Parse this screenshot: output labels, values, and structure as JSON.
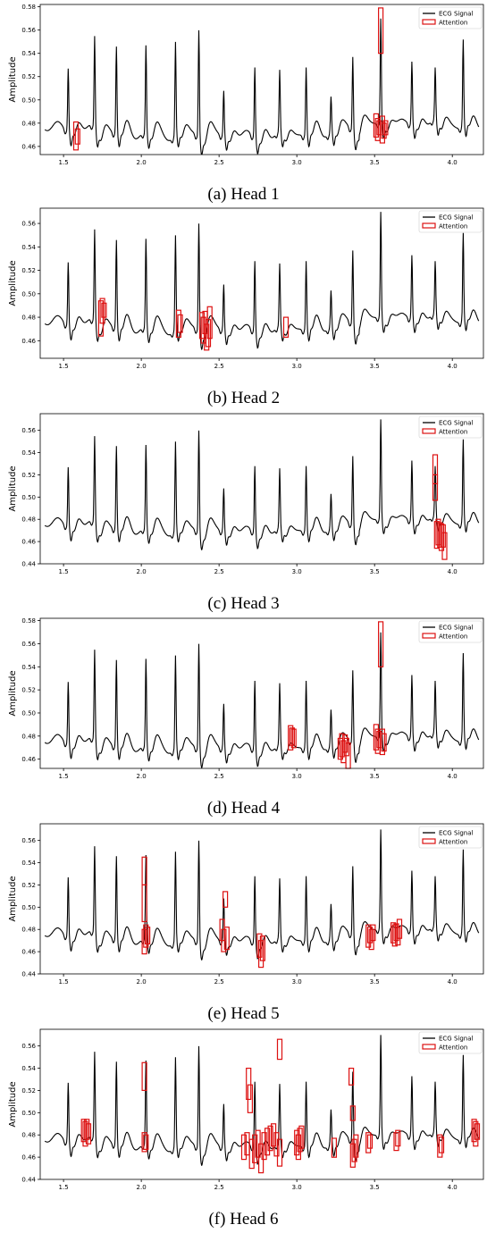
{
  "colors": {
    "signal": "#000000",
    "attention": "#dd1111",
    "axes": "#000000",
    "background": "#ffffff"
  },
  "chart_data": [
    {
      "type": "line",
      "caption": "(a) Head 1",
      "ylabel": "Amplitude",
      "xlim": [
        1.35,
        4.2
      ],
      "ylim": [
        0.453,
        0.582
      ],
      "xticks": [
        1.5,
        2.0,
        2.5,
        3.0,
        3.5,
        4.0
      ],
      "xtick_labels": [
        "1.5",
        "2.0",
        "2.5",
        "3.0",
        "3.5",
        "4.0"
      ],
      "yticks": [
        0.46,
        0.48,
        0.5,
        0.52,
        0.54,
        0.56,
        0.58
      ],
      "ytick_labels": [
        "0.46",
        "0.48",
        "0.50",
        "0.52",
        "0.54",
        "0.56",
        "0.58"
      ],
      "legend": {
        "position": "upper-right",
        "entries": [
          "ECG Signal",
          "Attention"
        ]
      },
      "series": [
        {
          "name": "ECG Signal",
          "style": "line"
        },
        {
          "name": "Attention",
          "style": "boxes",
          "boxes": [
            {
              "x": 1.58,
              "y0": 0.457,
              "y1": 0.481
            },
            {
              "x": 1.59,
              "y0": 0.462,
              "y1": 0.475
            },
            {
              "x": 3.51,
              "y0": 0.468,
              "y1": 0.488
            },
            {
              "x": 3.52,
              "y0": 0.465,
              "y1": 0.484
            },
            {
              "x": 3.53,
              "y0": 0.47,
              "y1": 0.482
            },
            {
              "x": 3.54,
              "y0": 0.54,
              "y1": 0.579
            },
            {
              "x": 3.55,
              "y0": 0.463,
              "y1": 0.486
            },
            {
              "x": 3.56,
              "y0": 0.467,
              "y1": 0.48
            },
            {
              "x": 3.57,
              "y0": 0.47,
              "y1": 0.482
            }
          ]
        }
      ]
    },
    {
      "type": "line",
      "caption": "(b) Head 2",
      "ylabel": "Amplitude",
      "xlim": [
        1.35,
        4.2
      ],
      "ylim": [
        0.445,
        0.573
      ],
      "xticks": [
        1.5,
        2.0,
        2.5,
        3.0,
        3.5,
        4.0
      ],
      "xtick_labels": [
        "1.5",
        "2.0",
        "2.5",
        "3.0",
        "3.5",
        "4.0"
      ],
      "yticks": [
        0.46,
        0.48,
        0.5,
        0.52,
        0.54,
        0.56
      ],
      "ytick_labels": [
        "0.46",
        "0.48",
        "0.50",
        "0.52",
        "0.54",
        "0.56"
      ],
      "legend": {
        "position": "upper-right",
        "entries": [
          "ECG Signal",
          "Attention"
        ]
      },
      "series": [
        {
          "name": "ECG Signal",
          "style": "line"
        },
        {
          "name": "Attention",
          "style": "boxes",
          "boxes": [
            {
              "x": 1.74,
              "y0": 0.464,
              "y1": 0.494
            },
            {
              "x": 1.75,
              "y0": 0.475,
              "y1": 0.496
            },
            {
              "x": 1.76,
              "y0": 0.48,
              "y1": 0.492
            },
            {
              "x": 2.24,
              "y0": 0.463,
              "y1": 0.486
            },
            {
              "x": 2.25,
              "y0": 0.467,
              "y1": 0.482
            },
            {
              "x": 2.39,
              "y0": 0.462,
              "y1": 0.484
            },
            {
              "x": 2.4,
              "y0": 0.458,
              "y1": 0.48
            },
            {
              "x": 2.41,
              "y0": 0.466,
              "y1": 0.485
            },
            {
              "x": 2.42,
              "y0": 0.452,
              "y1": 0.474
            },
            {
              "x": 2.43,
              "y0": 0.455,
              "y1": 0.478
            },
            {
              "x": 2.44,
              "y0": 0.462,
              "y1": 0.489
            },
            {
              "x": 2.93,
              "y0": 0.463,
              "y1": 0.48
            }
          ]
        }
      ]
    },
    {
      "type": "line",
      "caption": "(c) Head 3",
      "ylabel": "Amplitude",
      "xlim": [
        1.35,
        4.2
      ],
      "ylim": [
        0.44,
        0.575
      ],
      "xticks": [
        1.5,
        2.0,
        2.5,
        3.0,
        3.5,
        4.0
      ],
      "xtick_labels": [
        "1.5",
        "2.0",
        "2.5",
        "3.0",
        "3.5",
        "4.0"
      ],
      "yticks": [
        0.44,
        0.46,
        0.48,
        0.5,
        0.52,
        0.54,
        0.56
      ],
      "ytick_labels": [
        "0.44",
        "0.46",
        "0.48",
        "0.50",
        "0.52",
        "0.54",
        "0.56"
      ],
      "legend": {
        "position": "upper-right",
        "entries": [
          "ECG Signal",
          "Attention"
        ]
      },
      "series": [
        {
          "name": "ECG Signal",
          "style": "line"
        },
        {
          "name": "Attention",
          "style": "boxes",
          "boxes": [
            {
              "x": 3.89,
              "y0": 0.512,
              "y1": 0.538
            },
            {
              "x": 3.89,
              "y0": 0.497,
              "y1": 0.52
            },
            {
              "x": 3.9,
              "y0": 0.454,
              "y1": 0.478
            },
            {
              "x": 3.91,
              "y0": 0.457,
              "y1": 0.48
            },
            {
              "x": 3.92,
              "y0": 0.455,
              "y1": 0.477
            },
            {
              "x": 3.93,
              "y0": 0.452,
              "y1": 0.476
            },
            {
              "x": 3.94,
              "y0": 0.455,
              "y1": 0.475
            },
            {
              "x": 3.95,
              "y0": 0.444,
              "y1": 0.468
            }
          ]
        }
      ]
    },
    {
      "type": "line",
      "caption": "(d) Head 4",
      "ylabel": "Amplitude",
      "xlim": [
        1.35,
        4.2
      ],
      "ylim": [
        0.452,
        0.582
      ],
      "xticks": [
        1.5,
        2.0,
        2.5,
        3.0,
        3.5,
        4.0
      ],
      "xtick_labels": [
        "1.5",
        "2.0",
        "2.5",
        "3.0",
        "3.5",
        "4.0"
      ],
      "yticks": [
        0.46,
        0.48,
        0.5,
        0.52,
        0.54,
        0.56,
        0.58
      ],
      "ytick_labels": [
        "0.46",
        "0.48",
        "0.50",
        "0.52",
        "0.54",
        "0.56",
        "0.58"
      ],
      "legend": {
        "position": "upper-right",
        "entries": [
          "ECG Signal",
          "Attention"
        ]
      },
      "series": [
        {
          "name": "ECG Signal",
          "style": "line"
        },
        {
          "name": "Attention",
          "style": "boxes",
          "boxes": [
            {
              "x": 2.96,
              "y0": 0.468,
              "y1": 0.489
            },
            {
              "x": 2.97,
              "y0": 0.472,
              "y1": 0.487
            },
            {
              "x": 2.98,
              "y0": 0.47,
              "y1": 0.486
            },
            {
              "x": 3.28,
              "y0": 0.46,
              "y1": 0.478
            },
            {
              "x": 3.29,
              "y0": 0.462,
              "y1": 0.482
            },
            {
              "x": 3.3,
              "y0": 0.457,
              "y1": 0.476
            },
            {
              "x": 3.31,
              "y0": 0.466,
              "y1": 0.481
            },
            {
              "x": 3.32,
              "y0": 0.463,
              "y1": 0.478
            },
            {
              "x": 3.33,
              "y0": 0.452,
              "y1": 0.474
            },
            {
              "x": 3.51,
              "y0": 0.468,
              "y1": 0.49
            },
            {
              "x": 3.52,
              "y0": 0.465,
              "y1": 0.486
            },
            {
              "x": 3.53,
              "y0": 0.47,
              "y1": 0.484
            },
            {
              "x": 3.54,
              "y0": 0.54,
              "y1": 0.579
            },
            {
              "x": 3.55,
              "y0": 0.464,
              "y1": 0.486
            },
            {
              "x": 3.56,
              "y0": 0.467,
              "y1": 0.482
            }
          ]
        }
      ]
    },
    {
      "type": "line",
      "caption": "(e) Head 5",
      "ylabel": "Amplitude",
      "xlim": [
        1.35,
        4.2
      ],
      "ylim": [
        0.44,
        0.575
      ],
      "xticks": [
        1.5,
        2.0,
        2.5,
        3.0,
        3.5,
        4.0
      ],
      "xtick_labels": [
        "1.5",
        "2.0",
        "2.5",
        "3.0",
        "3.5",
        "4.0"
      ],
      "yticks": [
        0.44,
        0.46,
        0.48,
        0.5,
        0.52,
        0.54,
        0.56
      ],
      "ytick_labels": [
        "0.44",
        "0.46",
        "0.48",
        "0.50",
        "0.52",
        "0.54",
        "0.56"
      ],
      "legend": {
        "position": "upper-right",
        "entries": [
          "ECG Signal",
          "Attention"
        ]
      },
      "series": [
        {
          "name": "ECG Signal",
          "style": "line"
        },
        {
          "name": "Attention",
          "style": "boxes",
          "boxes": [
            {
              "x": 2.02,
              "y0": 0.52,
              "y1": 0.545
            },
            {
              "x": 2.02,
              "y0": 0.487,
              "y1": 0.52
            },
            {
              "x": 2.02,
              "y0": 0.458,
              "y1": 0.48
            },
            {
              "x": 2.03,
              "y0": 0.464,
              "y1": 0.484
            },
            {
              "x": 2.04,
              "y0": 0.467,
              "y1": 0.482
            },
            {
              "x": 2.52,
              "y0": 0.47,
              "y1": 0.489
            },
            {
              "x": 2.53,
              "y0": 0.46,
              "y1": 0.48
            },
            {
              "x": 2.54,
              "y0": 0.5,
              "y1": 0.514
            },
            {
              "x": 2.55,
              "y0": 0.462,
              "y1": 0.482
            },
            {
              "x": 2.76,
              "y0": 0.455,
              "y1": 0.476
            },
            {
              "x": 2.77,
              "y0": 0.446,
              "y1": 0.47
            },
            {
              "x": 2.78,
              "y0": 0.452,
              "y1": 0.474
            },
            {
              "x": 3.46,
              "y0": 0.464,
              "y1": 0.484
            },
            {
              "x": 3.47,
              "y0": 0.468,
              "y1": 0.482
            },
            {
              "x": 3.48,
              "y0": 0.462,
              "y1": 0.48
            },
            {
              "x": 3.49,
              "y0": 0.47,
              "y1": 0.484
            },
            {
              "x": 3.62,
              "y0": 0.468,
              "y1": 0.486
            },
            {
              "x": 3.63,
              "y0": 0.465,
              "y1": 0.484
            },
            {
              "x": 3.64,
              "y0": 0.47,
              "y1": 0.485
            },
            {
              "x": 3.65,
              "y0": 0.466,
              "y1": 0.482
            },
            {
              "x": 3.66,
              "y0": 0.472,
              "y1": 0.489
            }
          ]
        }
      ]
    },
    {
      "type": "line",
      "caption": "(f) Head 6",
      "ylabel": "Amplitude",
      "xlim": [
        1.35,
        4.2
      ],
      "ylim": [
        0.44,
        0.575
      ],
      "xticks": [
        1.5,
        2.0,
        2.5,
        3.0,
        3.5,
        4.0
      ],
      "xtick_labels": [
        "1.5",
        "2.0",
        "2.5",
        "3.0",
        "3.5",
        "4.0"
      ],
      "yticks": [
        0.44,
        0.46,
        0.48,
        0.5,
        0.52,
        0.54,
        0.56
      ],
      "ytick_labels": [
        "0.44",
        "0.46",
        "0.48",
        "0.50",
        "0.52",
        "0.54",
        "0.56"
      ],
      "legend": {
        "position": "upper-right",
        "entries": [
          "ECG Signal",
          "Attention"
        ]
      },
      "series": [
        {
          "name": "ECG Signal",
          "style": "line"
        },
        {
          "name": "Attention",
          "style": "boxes",
          "boxes": [
            {
              "x": 1.63,
              "y0": 0.474,
              "y1": 0.494
            },
            {
              "x": 1.64,
              "y0": 0.47,
              "y1": 0.492
            },
            {
              "x": 1.65,
              "y0": 0.476,
              "y1": 0.494
            },
            {
              "x": 1.66,
              "y0": 0.472,
              "y1": 0.49
            },
            {
              "x": 2.02,
              "y0": 0.52,
              "y1": 0.545
            },
            {
              "x": 2.02,
              "y0": 0.465,
              "y1": 0.482
            },
            {
              "x": 2.03,
              "y0": 0.467,
              "y1": 0.48
            },
            {
              "x": 2.66,
              "y0": 0.458,
              "y1": 0.48
            },
            {
              "x": 2.68,
              "y0": 0.462,
              "y1": 0.482
            },
            {
              "x": 2.69,
              "y0": 0.512,
              "y1": 0.54
            },
            {
              "x": 2.7,
              "y0": 0.5,
              "y1": 0.525
            },
            {
              "x": 2.71,
              "y0": 0.45,
              "y1": 0.476
            },
            {
              "x": 2.73,
              "y0": 0.455,
              "y1": 0.48
            },
            {
              "x": 2.75,
              "y0": 0.46,
              "y1": 0.484
            },
            {
              "x": 2.77,
              "y0": 0.446,
              "y1": 0.472
            },
            {
              "x": 2.79,
              "y0": 0.458,
              "y1": 0.482
            },
            {
              "x": 2.81,
              "y0": 0.462,
              "y1": 0.486
            },
            {
              "x": 2.83,
              "y0": 0.466,
              "y1": 0.488
            },
            {
              "x": 2.85,
              "y0": 0.47,
              "y1": 0.49
            },
            {
              "x": 2.87,
              "y0": 0.461,
              "y1": 0.482
            },
            {
              "x": 2.89,
              "y0": 0.548,
              "y1": 0.566
            },
            {
              "x": 2.89,
              "y0": 0.452,
              "y1": 0.476
            },
            {
              "x": 3.0,
              "y0": 0.462,
              "y1": 0.484
            },
            {
              "x": 3.01,
              "y0": 0.458,
              "y1": 0.48
            },
            {
              "x": 3.02,
              "y0": 0.465,
              "y1": 0.486
            },
            {
              "x": 3.03,
              "y0": 0.468,
              "y1": 0.488
            },
            {
              "x": 3.24,
              "y0": 0.46,
              "y1": 0.477
            },
            {
              "x": 3.35,
              "y0": 0.525,
              "y1": 0.54
            },
            {
              "x": 3.36,
              "y0": 0.493,
              "y1": 0.506
            },
            {
              "x": 3.36,
              "y0": 0.451,
              "y1": 0.472
            },
            {
              "x": 3.37,
              "y0": 0.456,
              "y1": 0.476
            },
            {
              "x": 3.38,
              "y0": 0.46,
              "y1": 0.48
            },
            {
              "x": 3.46,
              "y0": 0.464,
              "y1": 0.482
            },
            {
              "x": 3.47,
              "y0": 0.468,
              "y1": 0.48
            },
            {
              "x": 3.64,
              "y0": 0.466,
              "y1": 0.482
            },
            {
              "x": 3.65,
              "y0": 0.47,
              "y1": 0.484
            },
            {
              "x": 3.92,
              "y0": 0.46,
              "y1": 0.48
            },
            {
              "x": 3.93,
              "y0": 0.464,
              "y1": 0.478
            },
            {
              "x": 4.14,
              "y0": 0.474,
              "y1": 0.494
            },
            {
              "x": 4.15,
              "y0": 0.47,
              "y1": 0.492
            },
            {
              "x": 4.16,
              "y0": 0.476,
              "y1": 0.49
            }
          ]
        }
      ]
    }
  ]
}
